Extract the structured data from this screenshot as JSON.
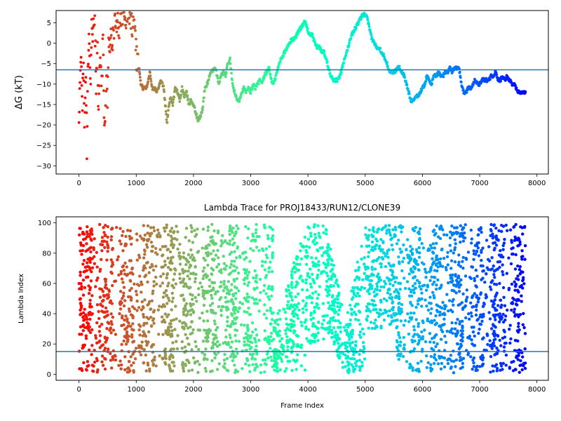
{
  "chart_data": [
    {
      "type": "scatter",
      "title": "",
      "xlabel": "",
      "ylabel": "ΔG (kT)",
      "xlim": [
        -400,
        8200
      ],
      "ylim": [
        -32,
        8
      ],
      "xticks": [
        0,
        1000,
        2000,
        3000,
        4000,
        5000,
        6000,
        7000,
        8000
      ],
      "yticks": [
        -30,
        -25,
        -20,
        -15,
        -10,
        -5,
        0,
        5
      ],
      "hline": -6.5,
      "hline_color": "#1f77b4",
      "colormap": "rainbow (red at frame 0 → violet at frame 7800)",
      "series_shape": [
        [
          0,
          -20
        ],
        [
          20,
          -10
        ],
        [
          40,
          -2
        ],
        [
          60,
          -15
        ],
        [
          80,
          -5
        ],
        [
          100,
          -21
        ],
        [
          120,
          -8
        ],
        [
          140,
          -27
        ],
        [
          160,
          -3
        ],
        [
          180,
          3
        ],
        [
          200,
          -12
        ],
        [
          220,
          6
        ],
        [
          240,
          -1
        ],
        [
          260,
          7
        ],
        [
          280,
          3
        ],
        [
          300,
          -9
        ],
        [
          320,
          1
        ],
        [
          340,
          -18
        ],
        [
          360,
          -8
        ],
        [
          380,
          -2
        ],
        [
          400,
          -13
        ],
        [
          420,
          4
        ],
        [
          440,
          -17
        ],
        [
          460,
          -20
        ],
        [
          480,
          -7
        ],
        [
          500,
          -13
        ],
        [
          520,
          2
        ],
        [
          540,
          -4
        ],
        [
          560,
          5
        ],
        [
          580,
          -1
        ],
        [
          600,
          1
        ],
        [
          620,
          6
        ],
        [
          640,
          7
        ],
        [
          660,
          3
        ],
        [
          680,
          5
        ],
        [
          700,
          4
        ],
        [
          720,
          7
        ],
        [
          760,
          8
        ],
        [
          800,
          6
        ],
        [
          840,
          7
        ],
        [
          880,
          8
        ],
        [
          920,
          4
        ],
        [
          960,
          8
        ],
        [
          980,
          6
        ],
        [
          1000,
          -3
        ],
        [
          1040,
          -5
        ],
        [
          1080,
          -10
        ],
        [
          1120,
          -11
        ],
        [
          1160,
          -11
        ],
        [
          1200,
          -10
        ],
        [
          1240,
          -7
        ],
        [
          1280,
          -11
        ],
        [
          1320,
          -11
        ],
        [
          1360,
          -12
        ],
        [
          1400,
          -10
        ],
        [
          1440,
          -9
        ],
        [
          1480,
          -11
        ],
        [
          1520,
          -17
        ],
        [
          1540,
          -20
        ],
        [
          1560,
          -16
        ],
        [
          1600,
          -13
        ],
        [
          1640,
          -15
        ],
        [
          1680,
          -11
        ],
        [
          1720,
          -12
        ],
        [
          1760,
          -14
        ],
        [
          1800,
          -11
        ],
        [
          1840,
          -13
        ],
        [
          1880,
          -12
        ],
        [
          1920,
          -15
        ],
        [
          1960,
          -14
        ],
        [
          2000,
          -15
        ],
        [
          2040,
          -17
        ],
        [
          2080,
          -19
        ],
        [
          2120,
          -18
        ],
        [
          2160,
          -16
        ],
        [
          2200,
          -11
        ],
        [
          2240,
          -10
        ],
        [
          2280,
          -8
        ],
        [
          2320,
          -7
        ],
        [
          2360,
          -6
        ],
        [
          2400,
          -7
        ],
        [
          2440,
          -10
        ],
        [
          2480,
          -8
        ],
        [
          2520,
          -7
        ],
        [
          2560,
          -8
        ],
        [
          2600,
          -5
        ],
        [
          2640,
          -4
        ],
        [
          2680,
          -10
        ],
        [
          2720,
          -12
        ],
        [
          2760,
          -14
        ],
        [
          2800,
          -14
        ],
        [
          2840,
          -12
        ],
        [
          2880,
          -11
        ],
        [
          2920,
          -12
        ],
        [
          2960,
          -11
        ],
        [
          3000,
          -12
        ],
        [
          3040,
          -10
        ],
        [
          3080,
          -11
        ],
        [
          3120,
          -10
        ],
        [
          3160,
          -9
        ],
        [
          3200,
          -10
        ],
        [
          3240,
          -8
        ],
        [
          3280,
          -7
        ],
        [
          3320,
          -6
        ],
        [
          3360,
          -9
        ],
        [
          3400,
          -10
        ],
        [
          3440,
          -8
        ],
        [
          3480,
          -6
        ],
        [
          3520,
          -4
        ],
        [
          3560,
          -3
        ],
        [
          3600,
          -2
        ],
        [
          3640,
          -1
        ],
        [
          3680,
          0
        ],
        [
          3720,
          1
        ],
        [
          3760,
          1
        ],
        [
          3800,
          2
        ],
        [
          3840,
          3
        ],
        [
          3880,
          4
        ],
        [
          3920,
          5
        ],
        [
          3960,
          5
        ],
        [
          4000,
          3
        ],
        [
          4040,
          2
        ],
        [
          4080,
          2
        ],
        [
          4120,
          0
        ],
        [
          4160,
          -1
        ],
        [
          4200,
          -1
        ],
        [
          4240,
          -2
        ],
        [
          4280,
          -2
        ],
        [
          4320,
          -4
        ],
        [
          4360,
          -6
        ],
        [
          4400,
          -8
        ],
        [
          4440,
          -9
        ],
        [
          4480,
          -9
        ],
        [
          4520,
          -9
        ],
        [
          4560,
          -8
        ],
        [
          4600,
          -6
        ],
        [
          4640,
          -4
        ],
        [
          4680,
          -2
        ],
        [
          4720,
          0
        ],
        [
          4760,
          2
        ],
        [
          4800,
          3
        ],
        [
          4840,
          4
        ],
        [
          4880,
          5
        ],
        [
          4920,
          6
        ],
        [
          4960,
          7
        ],
        [
          5000,
          7
        ],
        [
          5040,
          6
        ],
        [
          5080,
          3
        ],
        [
          5120,
          1
        ],
        [
          5160,
          0
        ],
        [
          5200,
          -1
        ],
        [
          5240,
          -1
        ],
        [
          5280,
          -2
        ],
        [
          5320,
          -3
        ],
        [
          5360,
          -4
        ],
        [
          5400,
          -6
        ],
        [
          5440,
          -7
        ],
        [
          5480,
          -7
        ],
        [
          5520,
          -7
        ],
        [
          5560,
          -6
        ],
        [
          5600,
          -6
        ],
        [
          5640,
          -7
        ],
        [
          5680,
          -8
        ],
        [
          5720,
          -10
        ],
        [
          5760,
          -12
        ],
        [
          5800,
          -14
        ],
        [
          5840,
          -14
        ],
        [
          5880,
          -13
        ],
        [
          5920,
          -13
        ],
        [
          5960,
          -12
        ],
        [
          6000,
          -11
        ],
        [
          6040,
          -10
        ],
        [
          6080,
          -8
        ],
        [
          6120,
          -9
        ],
        [
          6160,
          -10
        ],
        [
          6200,
          -8
        ],
        [
          6240,
          -8
        ],
        [
          6280,
          -7
        ],
        [
          6320,
          -8
        ],
        [
          6360,
          -8
        ],
        [
          6400,
          -7
        ],
        [
          6440,
          -7
        ],
        [
          6480,
          -6
        ],
        [
          6520,
          -7
        ],
        [
          6560,
          -6
        ],
        [
          6600,
          -6
        ],
        [
          6640,
          -6
        ],
        [
          6680,
          -10
        ],
        [
          6720,
          -12
        ],
        [
          6760,
          -12
        ],
        [
          6800,
          -11
        ],
        [
          6840,
          -11
        ],
        [
          6880,
          -10
        ],
        [
          6920,
          -9
        ],
        [
          6960,
          -10
        ],
        [
          7000,
          -10
        ],
        [
          7040,
          -9
        ],
        [
          7080,
          -9
        ],
        [
          7120,
          -9
        ],
        [
          7160,
          -9
        ],
        [
          7200,
          -8
        ],
        [
          7240,
          -8
        ],
        [
          7280,
          -7
        ],
        [
          7320,
          -9
        ],
        [
          7360,
          -9
        ],
        [
          7400,
          -8
        ],
        [
          7440,
          -9
        ],
        [
          7480,
          -8
        ],
        [
          7520,
          -9
        ],
        [
          7560,
          -10
        ],
        [
          7600,
          -10
        ],
        [
          7640,
          -11
        ],
        [
          7680,
          -12
        ],
        [
          7720,
          -12
        ],
        [
          7760,
          -12
        ],
        [
          7800,
          -12
        ]
      ]
    },
    {
      "type": "scatter",
      "title": "Lambda Trace for PROJ18433/RUN12/CLONE39",
      "xlabel": "Frame Index",
      "ylabel": "Lambda Index",
      "xlim": [
        -400,
        8200
      ],
      "ylim": [
        -4,
        104
      ],
      "xticks": [
        0,
        1000,
        2000,
        3000,
        4000,
        5000,
        6000,
        7000,
        8000
      ],
      "yticks": [
        0,
        20,
        40,
        60,
        80,
        100
      ],
      "hline": 15,
      "hline_color": "#1f77b4",
      "colormap": "rainbow (red at frame 0 → violet at frame 7800)",
      "frame_range": [
        0,
        7800
      ],
      "lambda_range": [
        0,
        99
      ],
      "point_count": 3900
    }
  ]
}
